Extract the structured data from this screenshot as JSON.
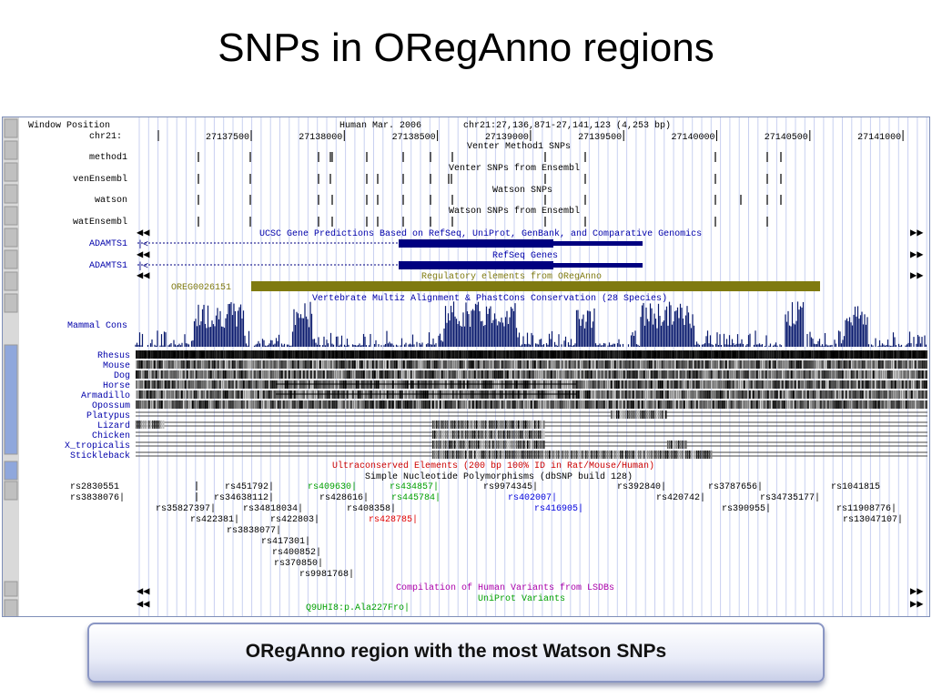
{
  "slide": {
    "title": "SNPs in ORegAnno regions",
    "caption": "ORegAnno region with the most Watson SNPs"
  },
  "browser": {
    "window_label": "Window Position",
    "chrom_label": "chr21:",
    "assembly": "Human Mar. 2006",
    "position": "chr21:27,136,871-27,141,123 (4,253 bp)",
    "ruler_ticks": [
      "27137500",
      "27138000",
      "27138500",
      "27139000",
      "27139500",
      "27140000",
      "27140500",
      "27141000"
    ],
    "track_headers": {
      "venter_method1": "Venter Method1 SNPs",
      "venter_ensembl": "Venter SNPs from Ensembl",
      "watson": "Watson SNPs",
      "watson_ensembl": "Watson SNPs from Ensembl",
      "ucsc_genes": "UCSC Gene Predictions Based on RefSeq, UniProt, GenBank, and Comparative Genomics",
      "refseq": "RefSeq Genes",
      "oreganno": "Regulatory elements from ORegAnno",
      "multiz": "Vertebrate Multiz Alignment & PhastCons Conservation (28 Species)",
      "ultraconserved": "Ultraconserved Elements (200 bp 100% ID in Rat/Mouse/Human)",
      "snp128": "Simple Nucleotide Polymorphisms (dbSNP build 128)",
      "lsdb": "Compilation of Human Variants from LSDBs",
      "uniprot": "UniProt Variants"
    },
    "left_labels": {
      "method1": "method1",
      "venEnsembl": "venEnsembl",
      "watson": "watson",
      "watEnsembl": "watEnsembl",
      "gene1": "ADAMTS1",
      "gene2": "ADAMTS1",
      "oreg": "OREG0026151",
      "mammal": "Mammal Cons"
    },
    "species": [
      "Rhesus",
      "Mouse",
      "Dog",
      "Horse",
      "Armadillo",
      "Opossum",
      "Platypus",
      "Lizard",
      "Chicken",
      "X_tropicalis",
      "Stickleback"
    ],
    "snps": [
      {
        "text": "rs2830551",
        "color": "#000000"
      },
      {
        "text": "rs1041815",
        "color": "#000000"
      },
      {
        "text": "rs3838076|",
        "color": "#000000"
      },
      {
        "text": "rs451792|",
        "color": "#000000"
      },
      {
        "text": "rs409630|",
        "color": "#00a000"
      },
      {
        "text": "rs434857|",
        "color": "#00a000"
      },
      {
        "text": "rs9974345|",
        "color": "#000000"
      },
      {
        "text": "rs392840|",
        "color": "#000000"
      },
      {
        "text": "rs3787656|",
        "color": "#000000"
      },
      {
        "text": "rs34638112|",
        "color": "#000000"
      },
      {
        "text": "rs428616|",
        "color": "#000000"
      },
      {
        "text": "rs445784|",
        "color": "#00a000"
      },
      {
        "text": "rs402007|",
        "color": "#0000dd"
      },
      {
        "text": "rs420742|",
        "color": "#000000"
      },
      {
        "text": "rs34735177|",
        "color": "#000000"
      },
      {
        "text": "rs35827397|",
        "color": "#000000"
      },
      {
        "text": "rs34818034|",
        "color": "#000000"
      },
      {
        "text": "rs408358|",
        "color": "#000000"
      },
      {
        "text": "rs416905|",
        "color": "#0000dd"
      },
      {
        "text": "rs390955|",
        "color": "#000000"
      },
      {
        "text": "rs11908776|",
        "color": "#000000"
      },
      {
        "text": "rs422381|",
        "color": "#000000"
      },
      {
        "text": "rs422803|",
        "color": "#000000"
      },
      {
        "text": "rs428785|",
        "color": "#e00000"
      },
      {
        "text": "rs13047107|",
        "color": "#000000"
      },
      {
        "text": "rs3838077|",
        "color": "#000000"
      },
      {
        "text": "rs417301|",
        "color": "#000000"
      },
      {
        "text": "rs400852|",
        "color": "#000000"
      },
      {
        "text": "rs370850|",
        "color": "#000000"
      },
      {
        "text": "rs9981768|",
        "color": "#000000"
      }
    ],
    "uniprot_variant": "Q9UHI8:p.Ala227Fro|",
    "colors": {
      "header_text": "#000000",
      "blue_header": "#0000aa",
      "ultra_header": "#cc0000",
      "lsdb_header": "#aa00aa",
      "uniprot_header": "#00a000",
      "gene": "#000080",
      "oreg_bar": "#7f7a10",
      "conservation": "#0a1a6e",
      "vertical_grid": "#c8d0f0"
    }
  }
}
